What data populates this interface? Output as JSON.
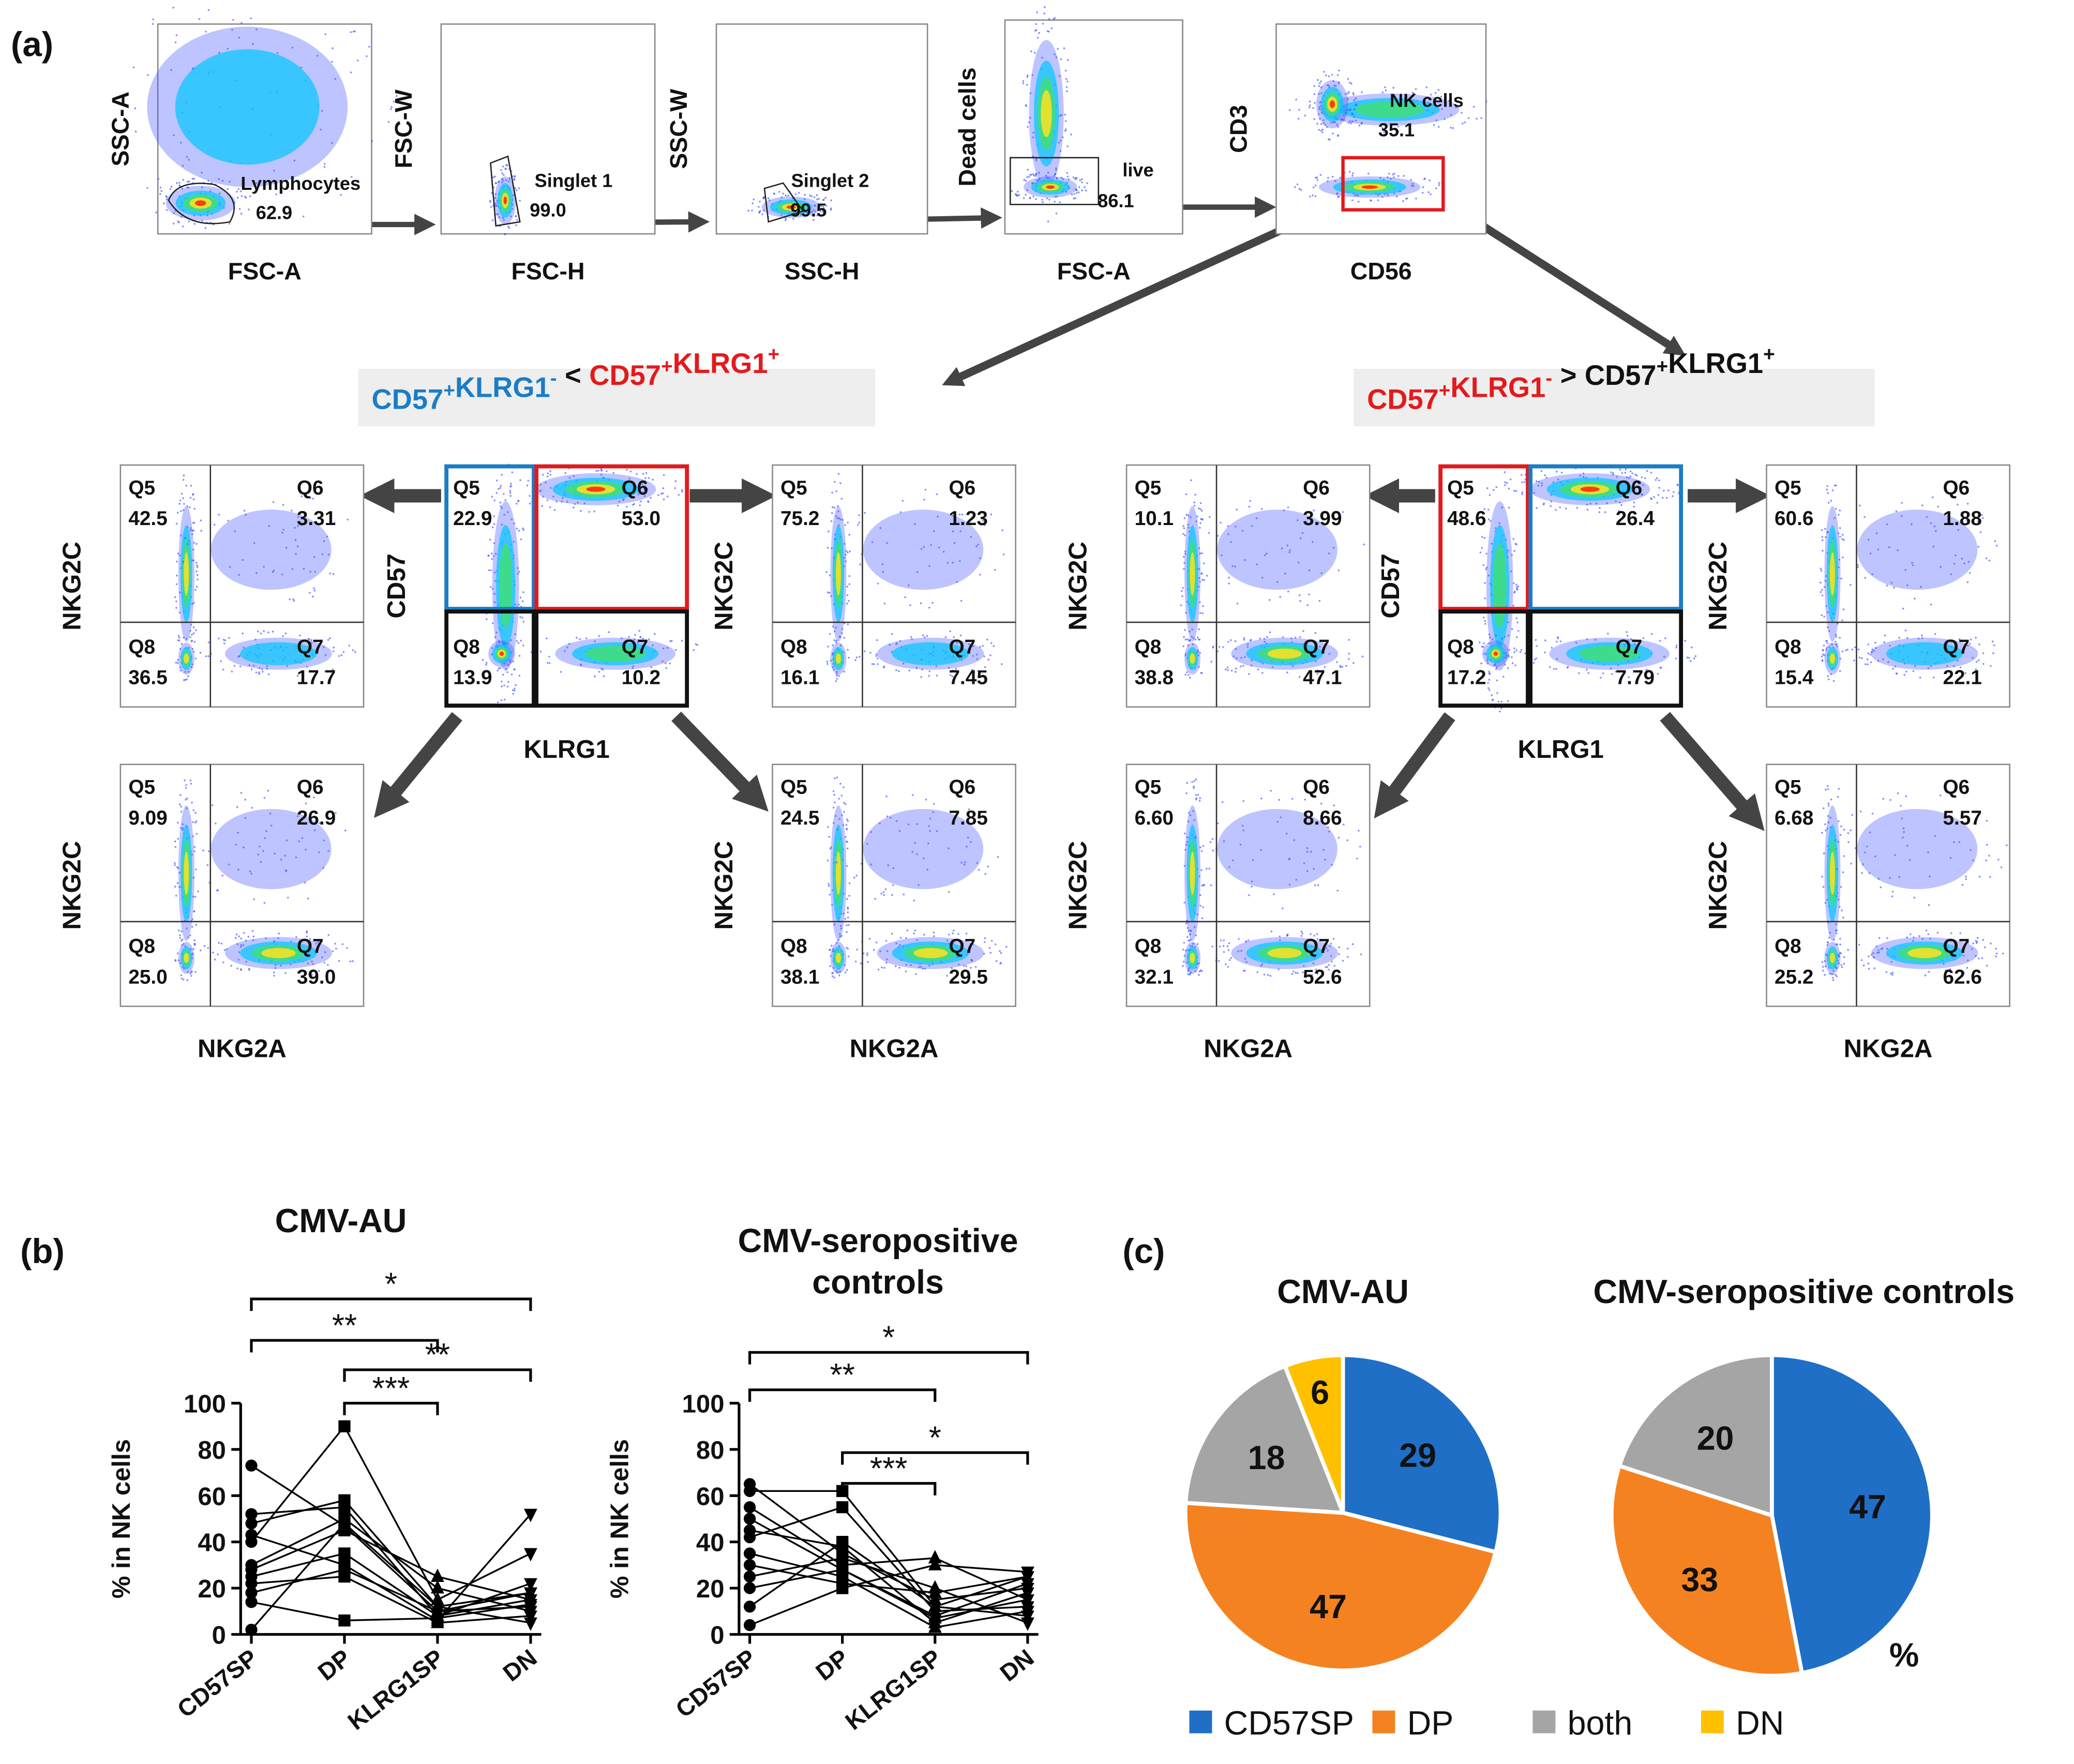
{
  "panel_labels": [
    "(a)",
    "(b)",
    "(c)"
  ],
  "gating": [
    {
      "y_label": "SSC-A",
      "x_label": "FSC-A",
      "gate_label": "Lymphocytes",
      "gate_value": "62.9"
    },
    {
      "y_label": "FSC-W",
      "x_label": "FSC-H",
      "gate_label": "Singlet 1",
      "gate_value": "99.0"
    },
    {
      "y_label": "SSC-W",
      "x_label": "SSC-H",
      "gate_label": "Singlet 2",
      "gate_value": "99.5"
    },
    {
      "y_label": "Dead cells",
      "x_label": "FSC-A",
      "gate_label": "live",
      "gate_value": "86.1"
    },
    {
      "y_label": "CD3",
      "x_label": "CD56",
      "gate_label": "NK cells",
      "gate_value": "35.1"
    }
  ],
  "headers": [
    {
      "segments": [
        {
          "text": "CD57",
          "sup": "+",
          "color": "#1a7dc8"
        },
        {
          "text": "KLRG1",
          "sup": "-",
          "color": "#1a7dc8"
        },
        {
          "text": "<",
          "color": "#111111"
        },
        {
          "text": "CD57",
          "sup": "+",
          "color": "#e31a1c"
        },
        {
          "text": "KLRG1",
          "sup": "+",
          "color": "#e31a1c"
        }
      ]
    },
    {
      "segments": [
        {
          "text": "CD57",
          "sup": "+",
          "color": "#e31a1c"
        },
        {
          "text": "KLRG1",
          "sup": "-",
          "color": "#e31a1c"
        },
        {
          "text": ">",
          "color": "#111111"
        },
        {
          "text": "CD57",
          "sup": "+",
          "color": "#111111"
        },
        {
          "text": "KLRG1",
          "sup": "+",
          "color": "#111111"
        }
      ]
    }
  ],
  "quadrant_plots": [
    {
      "y_label": "NKG2C",
      "quadrants": [
        {
          "name": "Q5",
          "value": "42.5"
        },
        {
          "name": "Q6",
          "value": "3.31"
        },
        {
          "name": "Q8",
          "value": "36.5"
        },
        {
          "name": "Q7",
          "value": "17.7"
        }
      ]
    },
    {
      "y_label": "CD57",
      "x_label": "KLRG1",
      "quadrants": [
        {
          "name": "Q5",
          "value": "22.9"
        },
        {
          "name": "Q6",
          "value": "53.0"
        },
        {
          "name": "Q8",
          "value": "13.9"
        },
        {
          "name": "Q7",
          "value": "10.2"
        }
      ]
    },
    {
      "y_label": "NKG2C",
      "quadrants": [
        {
          "name": "Q5",
          "value": "75.2"
        },
        {
          "name": "Q6",
          "value": "1.23"
        },
        {
          "name": "Q8",
          "value": "16.1"
        },
        {
          "name": "Q7",
          "value": "7.45"
        }
      ]
    },
    {
      "y_label": "NKG2C",
      "quadrants": [
        {
          "name": "Q5",
          "value": "10.1"
        },
        {
          "name": "Q6",
          "value": "3.99"
        },
        {
          "name": "Q8",
          "value": "38.8"
        },
        {
          "name": "Q7",
          "value": "47.1"
        }
      ]
    },
    {
      "y_label": "CD57",
      "x_label": "KLRG1",
      "quadrants": [
        {
          "name": "Q5",
          "value": "48.6"
        },
        {
          "name": "Q6",
          "value": "26.4"
        },
        {
          "name": "Q8",
          "value": "17.2"
        },
        {
          "name": "Q7",
          "value": "7.79"
        }
      ]
    },
    {
      "y_label": "NKG2C",
      "quadrants": [
        {
          "name": "Q5",
          "value": "60.6"
        },
        {
          "name": "Q6",
          "value": "1.88"
        },
        {
          "name": "Q8",
          "value": "15.4"
        },
        {
          "name": "Q7",
          "value": "22.1"
        }
      ]
    },
    {
      "y_label": "NKG2C",
      "x_label": "NKG2A",
      "quadrants": [
        {
          "name": "Q5",
          "value": "9.09"
        },
        {
          "name": "Q6",
          "value": "26.9"
        },
        {
          "name": "Q8",
          "value": "25.0"
        },
        {
          "name": "Q7",
          "value": "39.0"
        }
      ]
    },
    {
      "y_label": "NKG2C",
      "x_label": "NKG2A",
      "quadrants": [
        {
          "name": "Q5",
          "value": "24.5"
        },
        {
          "name": "Q6",
          "value": "7.85"
        },
        {
          "name": "Q8",
          "value": "38.1"
        },
        {
          "name": "Q7",
          "value": "29.5"
        }
      ]
    },
    {
      "y_label": "NKG2C",
      "x_label": "NKG2A",
      "quadrants": [
        {
          "name": "Q5",
          "value": "6.60"
        },
        {
          "name": "Q6",
          "value": "8.66"
        },
        {
          "name": "Q8",
          "value": "32.1"
        },
        {
          "name": "Q7",
          "value": "52.6"
        }
      ]
    },
    {
      "y_label": "NKG2C",
      "x_label": "NKG2A",
      "quadrants": [
        {
          "name": "Q5",
          "value": "6.68"
        },
        {
          "name": "Q6",
          "value": "5.57"
        },
        {
          "name": "Q8",
          "value": "25.2"
        },
        {
          "name": "Q7",
          "value": "62.6"
        }
      ]
    }
  ],
  "chart_data": [
    {
      "type": "line",
      "title": [
        "CMV-AU"
      ],
      "y_label": "% in NK cells",
      "categories": [
        "CD57SP",
        "DP",
        "KLRG1SP",
        "DN"
      ],
      "ylim": [
        0,
        100
      ],
      "yticks": [
        0,
        20,
        40,
        60,
        80,
        100
      ],
      "series": [
        {
          "color": "#000000",
          "values": [
            73,
            47,
            10,
            12
          ]
        },
        {
          "color": "#000000",
          "values": [
            52,
            55,
            8,
            15
          ]
        },
        {
          "color": "#000000",
          "values": [
            48,
            58,
            12,
            18
          ]
        },
        {
          "color": "#000000",
          "values": [
            43,
            30,
            6,
            52
          ]
        },
        {
          "color": "#000000",
          "values": [
            40,
            90,
            15,
            35
          ]
        },
        {
          "color": "#000000",
          "values": [
            30,
            50,
            20,
            10
          ]
        },
        {
          "color": "#000000",
          "values": [
            28,
            45,
            25,
            15
          ]
        },
        {
          "color": "#000000",
          "values": [
            25,
            35,
            8,
            22
          ]
        },
        {
          "color": "#000000",
          "values": [
            22,
            25,
            5,
            8
          ]
        },
        {
          "color": "#000000",
          "values": [
            18,
            28,
            10,
            18
          ]
        },
        {
          "color": "#000000",
          "values": [
            14,
            6,
            7,
            13
          ]
        },
        {
          "color": "#000000",
          "values": [
            2,
            48,
            12,
            5
          ]
        }
      ],
      "significance": [
        {
          "text": "*",
          "between": [
            "CD57SP",
            "DN"
          ]
        },
        {
          "text": "**",
          "between": [
            "CD57SP",
            "KLRG1SP"
          ]
        },
        {
          "text": "***",
          "between": [
            "DP",
            "KLRG1SP"
          ]
        },
        {
          "text": "**",
          "between": [
            "DP",
            "DN"
          ]
        }
      ]
    },
    {
      "type": "line",
      "title": [
        "CMV-seropositive",
        "controls"
      ],
      "y_label": "% in NK cells",
      "categories": [
        "CD57SP",
        "DP",
        "KLRG1SP",
        "DN"
      ],
      "ylim": [
        0,
        100
      ],
      "yticks": [
        0,
        20,
        40,
        60,
        80,
        100
      ],
      "series": [
        {
          "color": "#000000",
          "values": [
            65,
            35,
            15,
            20
          ]
        },
        {
          "color": "#000000",
          "values": [
            62,
            62,
            12,
            25
          ]
        },
        {
          "color": "#000000",
          "values": [
            55,
            30,
            33,
            15
          ]
        },
        {
          "color": "#000000",
          "values": [
            50,
            28,
            8,
            22
          ]
        },
        {
          "color": "#000000",
          "values": [
            45,
            38,
            5,
            18
          ]
        },
        {
          "color": "#000000",
          "values": [
            42,
            55,
            10,
            12
          ]
        },
        {
          "color": "#000000",
          "values": [
            35,
            25,
            3,
            10
          ]
        },
        {
          "color": "#000000",
          "values": [
            30,
            22,
            18,
            25
          ]
        },
        {
          "color": "#000000",
          "values": [
            25,
            33,
            20,
            5
          ]
        },
        {
          "color": "#000000",
          "values": [
            20,
            28,
            7,
            15
          ]
        },
        {
          "color": "#000000",
          "values": [
            12,
            40,
            12,
            8
          ]
        },
        {
          "color": "#000000",
          "values": [
            4,
            20,
            30,
            27
          ]
        }
      ],
      "significance": [
        {
          "text": "*",
          "between": [
            "CD57SP",
            "DN"
          ]
        },
        {
          "text": "**",
          "between": [
            "CD57SP",
            "KLRG1SP"
          ]
        },
        {
          "text": "***",
          "between": [
            "DP",
            "KLRG1SP"
          ]
        },
        {
          "text": "*",
          "between": [
            "DP",
            "DN"
          ]
        }
      ]
    },
    {
      "type": "pie",
      "title": "CMV-AU",
      "categories": [
        "CD57SP",
        "DP",
        "both",
        "DN"
      ],
      "values": [
        29,
        47,
        18,
        6
      ],
      "colors": [
        "#1f6fc6",
        "#f58220",
        "#a5a5a5",
        "#ffc000"
      ],
      "legend": "bottom"
    },
    {
      "type": "pie",
      "title": "CMV-seropositive controls",
      "categories": [
        "CD57SP",
        "DP",
        "both"
      ],
      "values": [
        47,
        33,
        20
      ],
      "colors": [
        "#1f6fc6",
        "#f58220",
        "#a5a5a5"
      ],
      "annotation": "%"
    }
  ]
}
